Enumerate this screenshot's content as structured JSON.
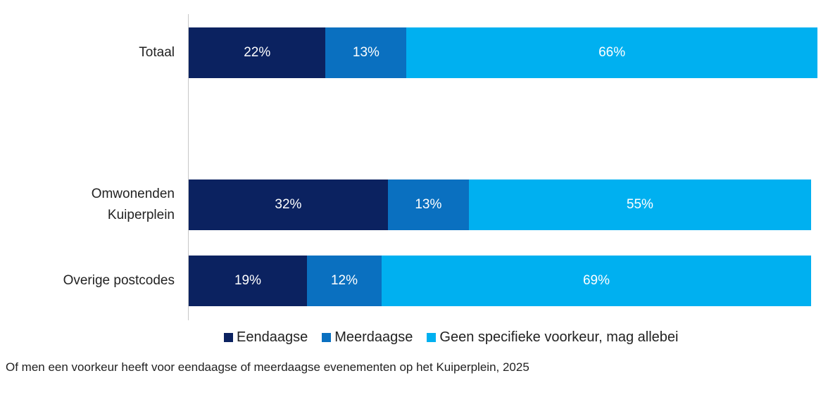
{
  "chart_data": {
    "type": "stacked-bar-horizontal",
    "categories": [
      "Totaal",
      null,
      "Omwonenden Kuiperplein",
      "Overige postcodes"
    ],
    "series": [
      {
        "name": "Eendaagse",
        "color": "#0b2260",
        "values": [
          22,
          null,
          32,
          19
        ],
        "value_labels": [
          "22%",
          null,
          "32%",
          "19%"
        ]
      },
      {
        "name": "Meerdaagse",
        "color": "#0a70c0",
        "values": [
          13,
          null,
          13,
          12
        ],
        "value_labels": [
          "13%",
          null,
          "13%",
          "12%"
        ]
      },
      {
        "name": "Geen specifieke voorkeur, mag allebei",
        "color": "#00b0f0",
        "values": [
          66,
          null,
          55,
          69
        ],
        "value_labels": [
          "66%",
          null,
          "55%",
          "69%"
        ]
      }
    ],
    "xlim": [
      0,
      100
    ],
    "legend": "bottom",
    "caption": "Of men een voorkeur heeft voor eendaagse of meerdaagse evenementen op het Kuiperplein, 2025"
  }
}
